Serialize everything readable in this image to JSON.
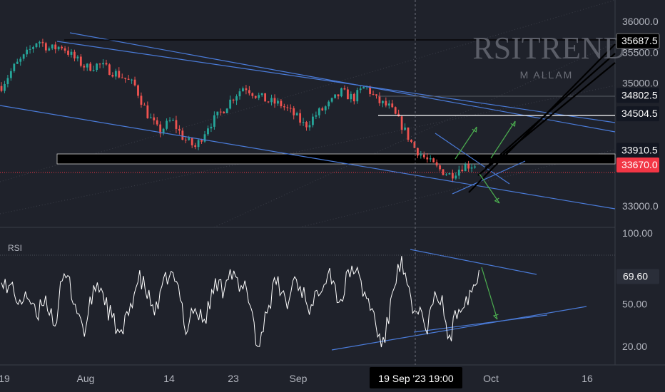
{
  "chart_data": [
    {
      "type": "candlestick",
      "symbol_overlay": "RSITREND",
      "author_overlay": "M ALLAM",
      "y_ticks": [
        36000,
        35500,
        35000,
        33000
      ],
      "y_tick_labels": [
        "36000.0",
        "35500.0",
        "35000.0",
        "33000.0"
      ],
      "price_labels": [
        {
          "value": 35687.5,
          "text": "35687.5",
          "style": "black"
        },
        {
          "value": 34802.5,
          "text": "34802.5",
          "style": "dark"
        },
        {
          "value": 34504.5,
          "text": "34504.5",
          "style": "dark"
        },
        {
          "value": 33910.5,
          "text": "33910.5",
          "style": "dark"
        },
        {
          "value": 33670.0,
          "text": "33670.0",
          "style": "red"
        }
      ],
      "ylim": [
        32650,
        36350
      ],
      "approx_close_path": [
        34950,
        35250,
        35450,
        35700,
        35550,
        35600,
        35400,
        35250,
        35300,
        35200,
        35100,
        34950,
        34500,
        34200,
        34400,
        34100,
        33950,
        34300,
        34500,
        34750,
        34950,
        34800,
        34700,
        34650,
        34500,
        34300,
        34500,
        34650,
        34850,
        34750,
        34950,
        34700,
        34600,
        34300,
        33950,
        33750,
        33600,
        33500,
        33650,
        33670
      ],
      "colors": {
        "up": "#26a69a",
        "down": "#ef5350",
        "channel": "#4a7bd8",
        "arrow": "#4caf50",
        "price_red": "#f23645"
      }
    },
    {
      "type": "line",
      "title": "RSI",
      "y_ticks": [
        100,
        50,
        20
      ],
      "y_tick_labels": [
        "100.00",
        "50.00",
        "20.00"
      ],
      "current_label": "69.60",
      "current_value": 69.6,
      "ylim": [
        7,
        104
      ],
      "approx_values": [
        72,
        58,
        64,
        45,
        60,
        50,
        38,
        55,
        48,
        35,
        62,
        70,
        55,
        42,
        30,
        52,
        65,
        58,
        44,
        36,
        25,
        40,
        55,
        68,
        62,
        50,
        45,
        60,
        72,
        66,
        55,
        30,
        48,
        42,
        38,
        52,
        66,
        60,
        74,
        68,
        58,
        62,
        45,
        15,
        40,
        52,
        66,
        58,
        48,
        70,
        62,
        55,
        44,
        60,
        68,
        75,
        58,
        52,
        70,
        77,
        65,
        55,
        48,
        30,
        20,
        45,
        70,
        78,
        60,
        42,
        50,
        28,
        45,
        58,
        48,
        22,
        40,
        52,
        55,
        62,
        69.6
      ]
    }
  ],
  "x_axis": {
    "labels": [
      "19",
      "Aug",
      "14",
      "23",
      "Sep",
      "Oct",
      "16"
    ],
    "crosshair_label": "19 Sep '23   19:00"
  }
}
